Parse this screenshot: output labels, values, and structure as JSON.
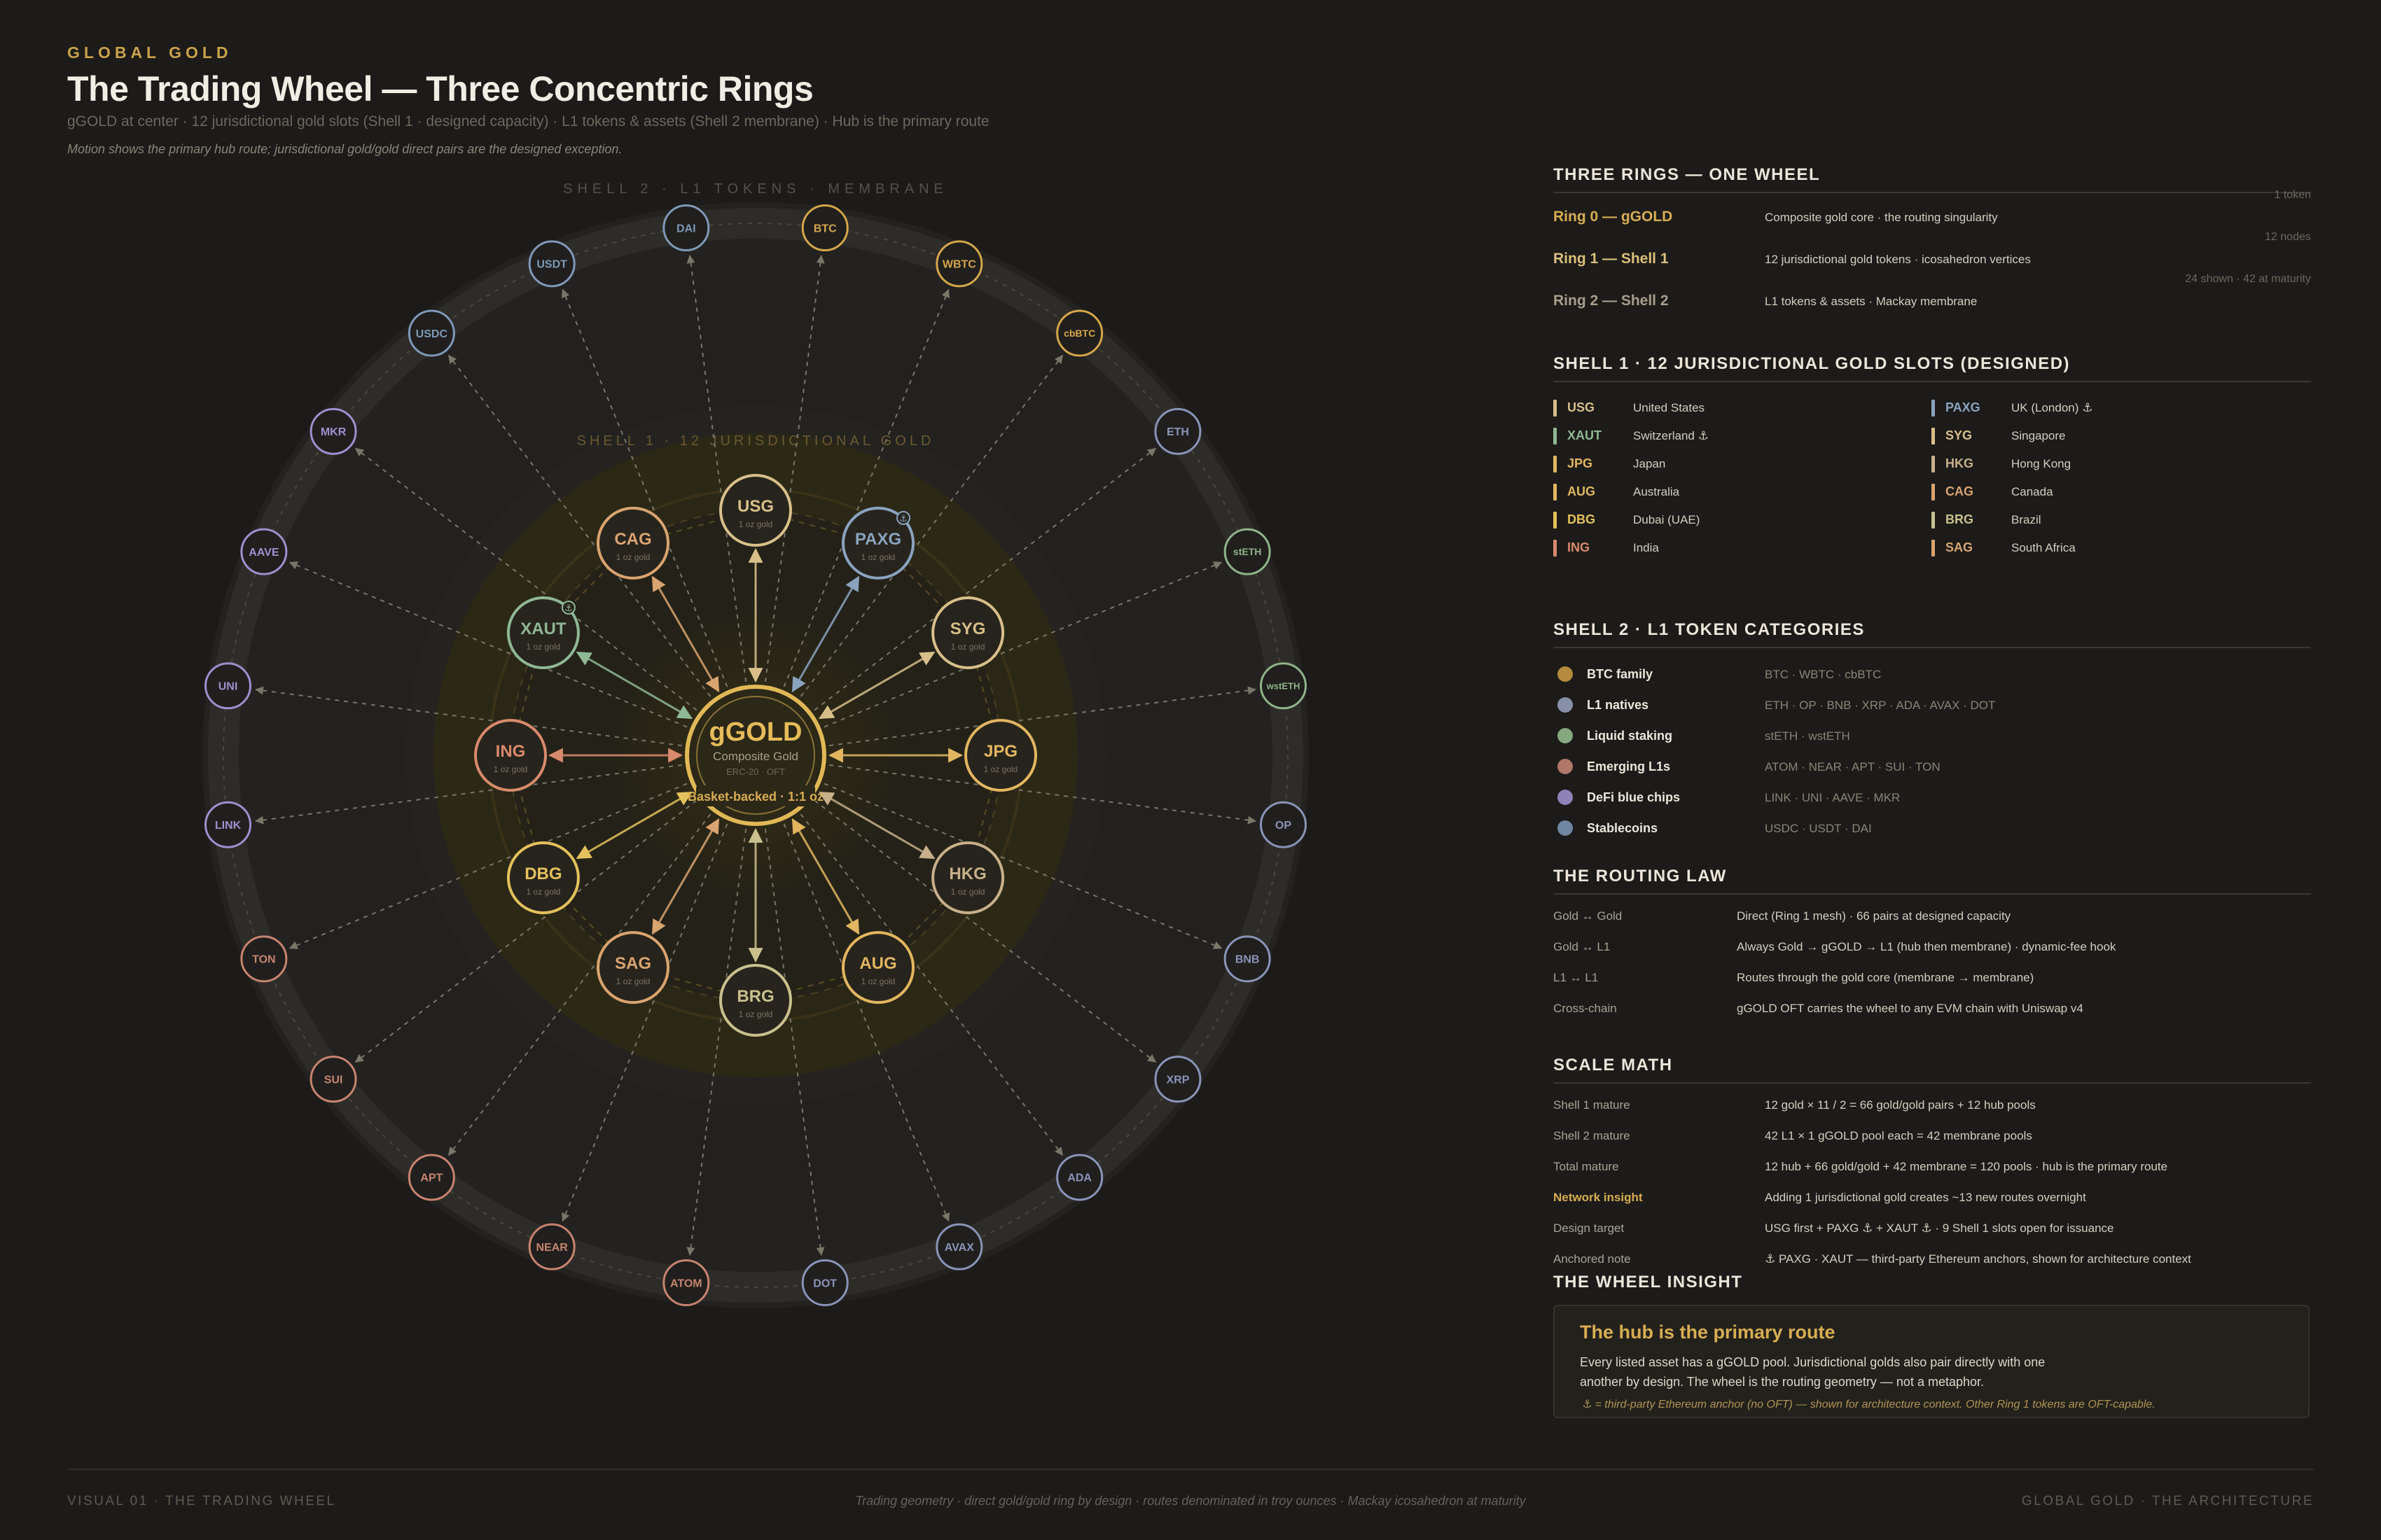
{
  "header": {
    "kicker": "GLOBAL GOLD",
    "title": "The Trading Wheel — Three Concentric Rings",
    "subtitle": "gGOLD at center · 12 jurisdictional gold slots (Shell 1 · designed capacity) · L1 tokens & assets (Shell 2 membrane) · Hub is the primary route",
    "note": "Motion shows the primary hub route; jurisdictional gold/gold direct pairs are the designed exception."
  },
  "wheel": {
    "shell2_label": "SHELL 2 · L1 TOKENS · MEMBRANE",
    "shell1_label": "SHELL 1 · 12 JURISDICTIONAL GOLD",
    "hub": {
      "name": "gGOLD",
      "sub": "Composite Gold",
      "tech": "ERC-20 · OFT",
      "tag": "Basket-backed · 1:1 oz"
    },
    "gold_nodes": [
      {
        "code": "USG",
        "sub": "1 oz gold",
        "color": "#d8bf8a",
        "anchor": false
      },
      {
        "code": "PAXG",
        "sub": "1 oz gold",
        "color": "#8aa3bf",
        "anchor": true
      },
      {
        "code": "SYG",
        "sub": "1 oz gold",
        "color": "#d8bf8a",
        "anchor": false
      },
      {
        "code": "JPG",
        "sub": "1 oz gold",
        "color": "#e2b660",
        "anchor": false
      },
      {
        "code": "HKG",
        "sub": "1 oz gold",
        "color": "#c7b08a",
        "anchor": false
      },
      {
        "code": "AUG",
        "sub": "1 oz gold",
        "color": "#e2b660",
        "anchor": false
      },
      {
        "code": "BRG",
        "sub": "1 oz gold",
        "color": "#c9c08e",
        "anchor": false
      },
      {
        "code": "SAG",
        "sub": "1 oz gold",
        "color": "#d9a470",
        "anchor": false
      },
      {
        "code": "DBG",
        "sub": "1 oz gold",
        "color": "#e4c15c",
        "anchor": false
      },
      {
        "code": "ING",
        "sub": "1 oz gold",
        "color": "#d88a6c",
        "anchor": false
      },
      {
        "code": "XAUT",
        "sub": "1 oz gold",
        "color": "#8fb894",
        "anchor": true
      },
      {
        "code": "CAG",
        "sub": "1 oz gold",
        "color": "#d9a470",
        "anchor": false
      }
    ],
    "l1_nodes": [
      {
        "code": "BTC",
        "color": "#d4a64a"
      },
      {
        "code": "WBTC",
        "color": "#d4a64a"
      },
      {
        "code": "cbBTC",
        "color": "#d4a64a"
      },
      {
        "code": "ETH",
        "color": "#8a94b8"
      },
      {
        "code": "stETH",
        "color": "#8fb488"
      },
      {
        "code": "wstETH",
        "color": "#8fb488"
      },
      {
        "code": "OP",
        "color": "#8a94b8"
      },
      {
        "code": "BNB",
        "color": "#8a94b8"
      },
      {
        "code": "XRP",
        "color": "#8a94b8"
      },
      {
        "code": "ADA",
        "color": "#8a94b8"
      },
      {
        "code": "AVAX",
        "color": "#8a94b8"
      },
      {
        "code": "DOT",
        "color": "#8a94b8"
      },
      {
        "code": "ATOM",
        "color": "#c78470"
      },
      {
        "code": "NEAR",
        "color": "#c78470"
      },
      {
        "code": "APT",
        "color": "#c78470"
      },
      {
        "code": "SUI",
        "color": "#c78470"
      },
      {
        "code": "TON",
        "color": "#c78470"
      },
      {
        "code": "LINK",
        "color": "#9f8fcf"
      },
      {
        "code": "UNI",
        "color": "#9f8fcf"
      },
      {
        "code": "AAVE",
        "color": "#9f8fcf"
      },
      {
        "code": "MKR",
        "color": "#9f8fcf"
      },
      {
        "code": "USDC",
        "color": "#7f99b8"
      },
      {
        "code": "USDT",
        "color": "#7f99b8"
      },
      {
        "code": "DAI",
        "color": "#7f99b8"
      }
    ]
  },
  "three_rings": {
    "heading": "THREE RINGS — ONE WHEEL",
    "rows": [
      {
        "name": "Ring 0 — gGOLD",
        "desc": "Composite gold core · the routing singularity",
        "count": "1 token",
        "color": "#d8ad52"
      },
      {
        "name": "Ring 1 — Shell 1",
        "desc": "12 jurisdictional gold tokens · icosahedron vertices",
        "count": "12 nodes",
        "color": "#dcc07a"
      },
      {
        "name": "Ring 2 — Shell 2",
        "desc": "L1 tokens & assets · Mackay membrane",
        "count": "24 shown · 42 at maturity",
        "color": "#a79e8b"
      }
    ]
  },
  "shell1": {
    "heading": "SHELL 1 · 12 JURISDICTIONAL GOLD SLOTS (DESIGNED)",
    "slots_left": [
      {
        "code": "USG",
        "place": "United States",
        "color": "#d8bf8a"
      },
      {
        "code": "XAUT",
        "place": "Switzerland ⚓",
        "color": "#8fb894"
      },
      {
        "code": "JPG",
        "place": "Japan",
        "color": "#e2b660"
      },
      {
        "code": "AUG",
        "place": "Australia",
        "color": "#e2b660"
      },
      {
        "code": "DBG",
        "place": "Dubai (UAE)",
        "color": "#e4c15c"
      },
      {
        "code": "ING",
        "place": "India",
        "color": "#d88a6c"
      }
    ],
    "slots_right": [
      {
        "code": "PAXG",
        "place": "UK (London) ⚓",
        "color": "#8aa3bf"
      },
      {
        "code": "SYG",
        "place": "Singapore",
        "color": "#d8bf8a"
      },
      {
        "code": "HKG",
        "place": "Hong Kong",
        "color": "#c7b08a"
      },
      {
        "code": "CAG",
        "place": "Canada",
        "color": "#d9a470"
      },
      {
        "code": "BRG",
        "place": "Brazil",
        "color": "#c9c08e"
      },
      {
        "code": "SAG",
        "place": "South Africa",
        "color": "#d9a470"
      }
    ]
  },
  "shell2": {
    "heading": "SHELL 2 · L1 TOKEN CATEGORIES",
    "categories": [
      {
        "name": "BTC family",
        "members": "BTC · WBTC · cbBTC",
        "color": "#b58a3e"
      },
      {
        "name": "L1 natives",
        "members": "ETH · OP · BNB · XRP · ADA · AVAX · DOT",
        "color": "#8790a8"
      },
      {
        "name": "Liquid staking",
        "members": "stETH · wstETH",
        "color": "#86a87f"
      },
      {
        "name": "Emerging L1s",
        "members": "ATOM · NEAR · APT · SUI · TON",
        "color": "#b07868"
      },
      {
        "name": "DeFi blue chips",
        "members": "LINK · UNI · AAVE · MKR",
        "color": "#8e82b8"
      },
      {
        "name": "Stablecoins",
        "members": "USDC · USDT · DAI",
        "color": "#6f87a3"
      }
    ]
  },
  "routing": {
    "heading": "THE ROUTING LAW",
    "rows": [
      {
        "k": "Gold ↔ Gold",
        "v": "Direct (Ring 1 mesh) · 66 pairs at designed capacity"
      },
      {
        "k": "Gold ↔ L1",
        "v": "Always Gold → gGOLD → L1 (hub then membrane) · dynamic-fee hook"
      },
      {
        "k": "L1 ↔ L1",
        "v": "Routes through the gold core (membrane → membrane)"
      },
      {
        "k": "Cross-chain",
        "v": "gGOLD OFT carries the wheel to any EVM chain with Uniswap v4"
      }
    ]
  },
  "scale": {
    "heading": "SCALE MATH",
    "rows": [
      {
        "k": "Shell 1 mature",
        "v": "12 gold × 11 / 2 = 66 gold/gold pairs + 12 hub pools"
      },
      {
        "k": "Shell 2 mature",
        "v": "42 L1 × 1 gGOLD pool each = 42 membrane pools"
      },
      {
        "k": "Total mature",
        "v": "12 hub + 66 gold/gold + 42 membrane = 120 pools · hub is the primary route"
      },
      {
        "k": "Network insight",
        "v": "Adding 1 jurisdictional gold creates ~13 new routes overnight"
      },
      {
        "k": "Design target",
        "v": "USG first + PAXG ⚓ + XAUT ⚓ · 9 Shell 1 slots open for issuance"
      },
      {
        "k": "Anchored note",
        "v": "⚓ PAXG · XAUT — third-party Ethereum anchors, shown for architecture context"
      }
    ]
  },
  "insight": {
    "heading": "THE WHEEL INSIGHT",
    "title": "The hub is the primary route",
    "line1": "Every listed asset has a gGOLD pool. Jurisdictional golds also pair directly with one",
    "line2": "another by design. The wheel is the routing geometry — not a metaphor.",
    "footnote": "⚓ = third-party Ethereum anchor (no OFT) — shown for architecture context. Other Ring 1 tokens are OFT-capable."
  },
  "footer": {
    "left": "VISUAL 01 · THE TRADING WHEEL",
    "center": "Trading geometry · direct gold/gold ring by design · routes denominated in troy ounces · Mackay icosahedron at maturity",
    "right": "GLOBAL GOLD · THE ARCHITECTURE"
  },
  "colors": {
    "background": "#1c1b19",
    "gold_accent": "#d8ad52",
    "hub_ring": "#e0b856",
    "muted": "#6d685e"
  }
}
